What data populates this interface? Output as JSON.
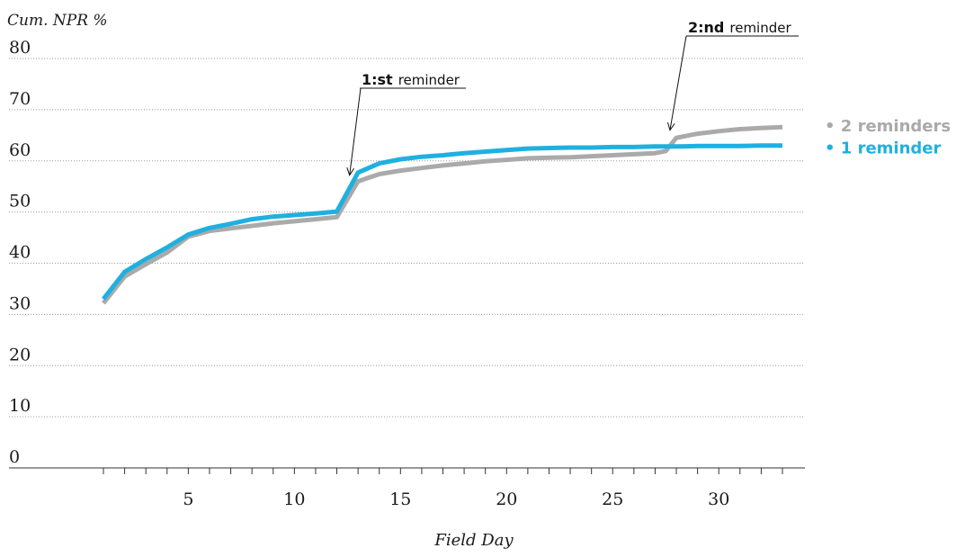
{
  "chart_data": {
    "type": "line",
    "ylabel": "Cum. NPR %",
    "xlabel": "Field Day",
    "ylim": [
      0,
      80
    ],
    "xlim": [
      1,
      33
    ],
    "yticks": [
      "0",
      "10",
      "20",
      "30",
      "40",
      "50",
      "60",
      "70",
      "80"
    ],
    "xticks": [
      "5",
      "10",
      "15",
      "20",
      "25",
      "30"
    ],
    "grid": true,
    "legend_position": "right",
    "series": [
      {
        "name": "2 reminders",
        "legend_label": "• 2 reminders",
        "color": "#aaaaaa",
        "x": [
          1,
          2,
          3,
          4,
          5,
          6,
          7,
          8,
          9,
          10,
          11,
          12,
          13,
          14,
          15,
          16,
          17,
          18,
          19,
          20,
          21,
          22,
          23,
          24,
          25,
          26,
          27,
          27.5,
          28,
          29,
          30,
          31,
          32,
          33
        ],
        "values": [
          32.2,
          37.4,
          39.8,
          42.1,
          45.2,
          46.3,
          46.8,
          47.3,
          47.8,
          48.2,
          48.6,
          49.0,
          56.0,
          57.4,
          58.1,
          58.6,
          59.1,
          59.5,
          59.9,
          60.2,
          60.5,
          60.6,
          60.7,
          60.9,
          61.1,
          61.3,
          61.5,
          61.9,
          64.5,
          65.3,
          65.8,
          66.2,
          66.4,
          66.6
        ]
      },
      {
        "name": "1 reminder",
        "legend_label": "• 1 reminder",
        "color": "#1fb0e0",
        "x": [
          1,
          2,
          3,
          4,
          5,
          6,
          7,
          8,
          9,
          10,
          11,
          12,
          13,
          14,
          15,
          16,
          17,
          18,
          19,
          20,
          21,
          22,
          23,
          24,
          25,
          26,
          27,
          28,
          29,
          30,
          31,
          32,
          33
        ],
        "values": [
          33.0,
          38.3,
          40.8,
          43.1,
          45.6,
          46.9,
          47.7,
          48.6,
          49.1,
          49.4,
          49.7,
          50.1,
          57.7,
          59.5,
          60.3,
          60.8,
          61.1,
          61.5,
          61.8,
          62.1,
          62.4,
          62.5,
          62.6,
          62.6,
          62.7,
          62.7,
          62.8,
          62.8,
          62.9,
          62.9,
          62.9,
          63.0,
          63.0
        ]
      }
    ],
    "annotations": [
      {
        "bold": "1:st",
        "text": "reminder",
        "x": 12.6,
        "y": 57.2
      },
      {
        "bold": "2:nd",
        "text": "reminder",
        "x": 27.7,
        "y": 66.0
      }
    ]
  }
}
